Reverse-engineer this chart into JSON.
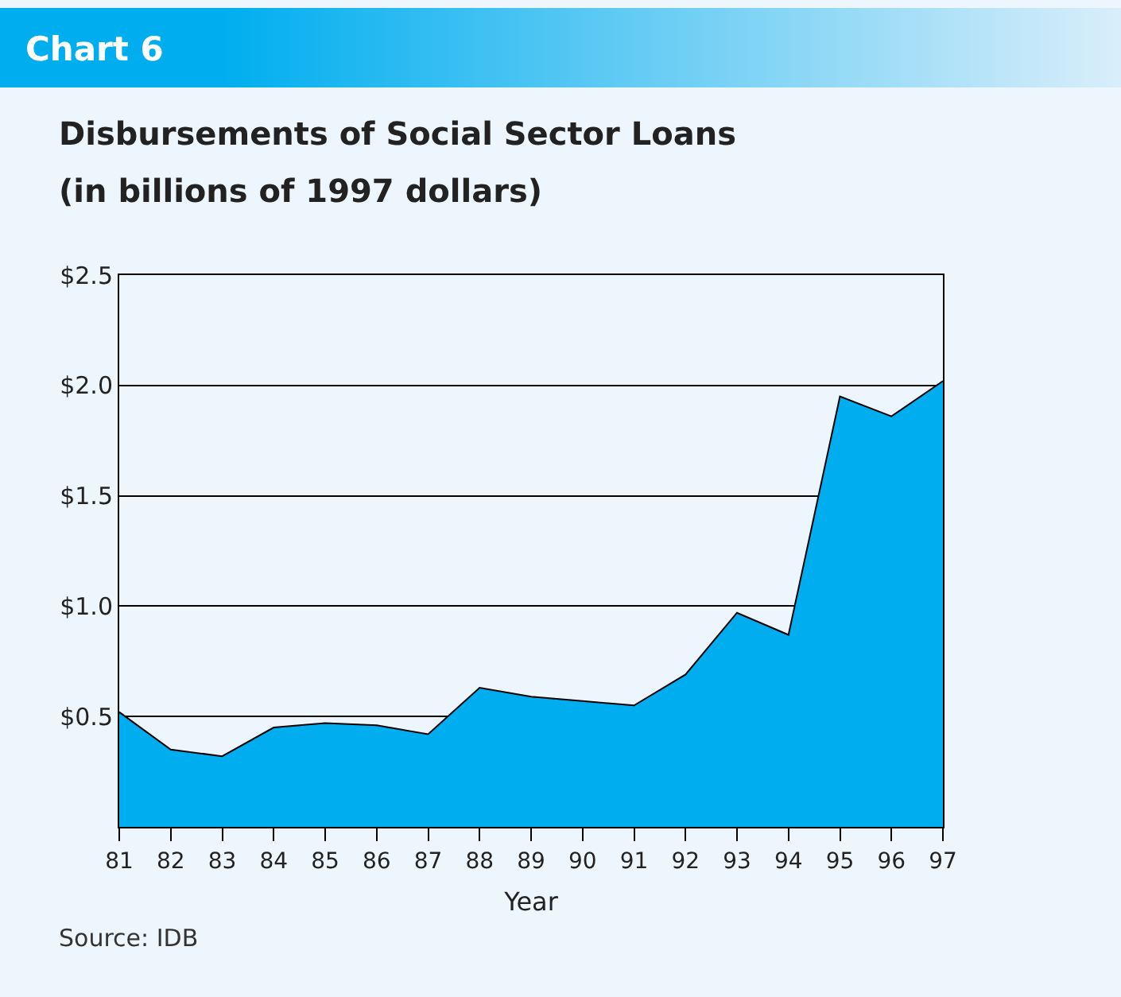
{
  "chart_data": {
    "type": "area",
    "title": "Disbursements of Social Sector Loans",
    "subtitle": "(in billions of 1997 dollars)",
    "xlabel": "Year",
    "annotations": [
      "Chart 6",
      "Source: IDB"
    ],
    "x": [
      81,
      82,
      83,
      84,
      85,
      86,
      87,
      88,
      89,
      90,
      91,
      92,
      93,
      94,
      95,
      96,
      97
    ],
    "values": [
      0.52,
      0.35,
      0.32,
      0.45,
      0.47,
      0.46,
      0.42,
      0.63,
      0.59,
      0.57,
      0.55,
      0.69,
      0.97,
      0.87,
      1.95,
      1.86,
      2.02
    ],
    "color": "#00aeef",
    "xlim": [
      81,
      97
    ],
    "xticks": [
      81,
      82,
      83,
      84,
      85,
      86,
      87,
      88,
      89,
      90,
      91,
      92,
      93,
      94,
      95,
      96,
      97
    ],
    "ylim": [
      0,
      2.5
    ],
    "yticks": [
      {
        "value": 0.5,
        "label": "$0.5"
      },
      {
        "value": 1,
        "label": "$1.0"
      },
      {
        "value": 1.5,
        "label": "$1.5"
      },
      {
        "value": 2,
        "label": "$2.0"
      },
      {
        "value": 2.5,
        "label": "$2.5"
      }
    ],
    "grid": "y",
    "legend": false
  }
}
